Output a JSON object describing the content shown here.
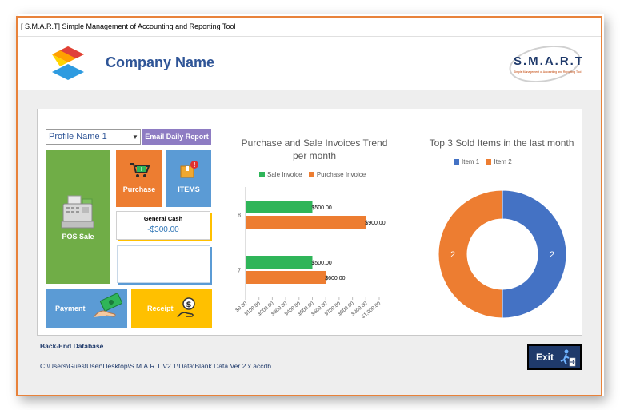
{
  "window": {
    "title": "[ S.M.A.R.T] Simple Management of Accounting and Reporting Tool"
  },
  "header": {
    "company_name": "Company Name",
    "brand_logo": {
      "text": "S.M.A.R.T",
      "subtitle": "Simple Management of Accounting and Reporting Tool"
    }
  },
  "controls": {
    "profile": {
      "selected": "Profile Name 1"
    },
    "email_report_label": "Email Daily Report"
  },
  "tiles": {
    "pos_sale": "POS Sale",
    "purchase": "Purchase",
    "items": "ITEMS",
    "general_cash": {
      "label": "General Cash",
      "value": "-$300.00"
    },
    "payment": "Payment",
    "receipt": "Receipt"
  },
  "icons": {
    "pos": "cash-register-icon",
    "purchase": "shopping-cart-icon",
    "items": "box-icon",
    "payment": "money-hand-icon",
    "receipt": "coin-hand-icon",
    "exit": "exit-door-icon"
  },
  "colors": {
    "accent_orange": "#ed7d31",
    "green": "#70ad47",
    "blue": "#5b9bd5",
    "yellow": "#ffc000",
    "purple": "#8e7cc3",
    "navy": "#1f3a6b"
  },
  "chart_data": [
    {
      "type": "bar",
      "orientation": "horizontal",
      "title": "Purchase and Sale Invoices Trend per month",
      "categories": [
        "8",
        "7"
      ],
      "series": [
        {
          "name": "Sale Invoice",
          "color": "#2fb559",
          "values": [
            500,
            500
          ],
          "labels": [
            "$500.00",
            "$500.00"
          ]
        },
        {
          "name": "Purchase Invoice",
          "color": "#ed7d31",
          "values": [
            900,
            600
          ],
          "labels": [
            "$900.00",
            "$600.00"
          ]
        }
      ],
      "xlim": [
        0,
        1000
      ],
      "xticks": [
        "$0.00",
        "$100.00",
        "$200.00",
        "$300.00",
        "$400.00",
        "$500.00",
        "$600.00",
        "$700.00",
        "$800.00",
        "$900.00",
        "$1,000.00"
      ],
      "legend": "top"
    },
    {
      "type": "pie",
      "donut": true,
      "title": "Top 3 Sold Items in the last month",
      "labels": [
        "Item 1",
        "Item 2"
      ],
      "values": [
        2,
        2
      ],
      "colors": [
        "#4472c4",
        "#ed7d31"
      ],
      "legend": "top"
    }
  ],
  "footer": {
    "db_label": "Back-End Database",
    "db_path": "C:\\Users\\GuestUser\\Desktop\\S.M.A.R.T V2.1\\Data\\Blank Data Ver 2.x.accdb",
    "exit_label": "Exit"
  }
}
